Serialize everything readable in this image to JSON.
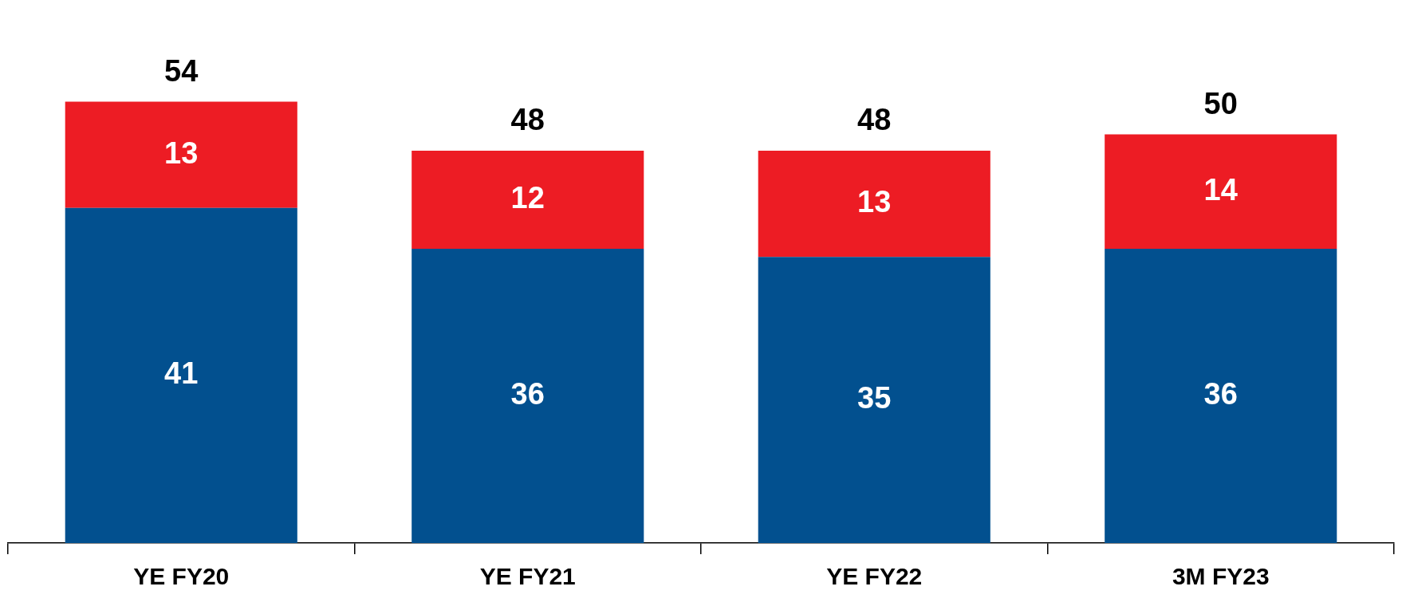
{
  "chart_data": {
    "type": "bar",
    "stacked": true,
    "categories": [
      "YE FY20",
      "YE FY21",
      "YE FY22",
      "3M FY23"
    ],
    "series": [
      {
        "color": "#02508f",
        "values": [
          41,
          36,
          35,
          36
        ]
      },
      {
        "color": "#ed1c24",
        "values": [
          13,
          12,
          13,
          14
        ]
      }
    ],
    "data_labels": true,
    "totals": [
      "54",
      "48",
      "48",
      "50"
    ],
    "legend": false,
    "grid": false
  }
}
